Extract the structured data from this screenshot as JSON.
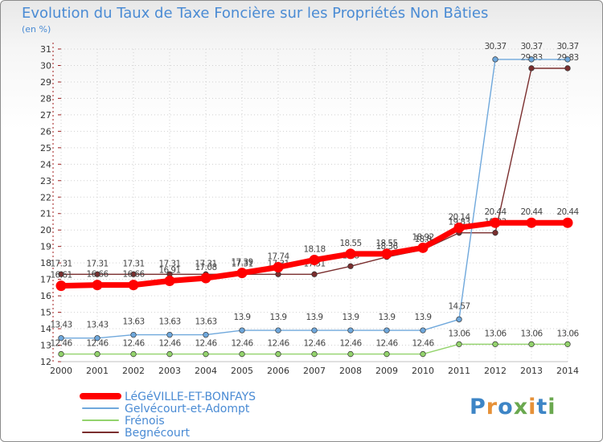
{
  "title": "Evolution du Taux de Taxe Foncière sur les Propriétés Non Bâties",
  "unit": "(en %)",
  "logo": "Proxiti",
  "chart_data": {
    "type": "line",
    "title": "Evolution du Taux de Taxe Foncière sur les Propriétés Non Bâties",
    "ylabel": "(en %)",
    "xlabel": "",
    "x": [
      2000,
      2001,
      2002,
      2003,
      2004,
      2005,
      2006,
      2007,
      2008,
      2009,
      2010,
      2011,
      2012,
      2013,
      2014
    ],
    "ylim": [
      12,
      31
    ],
    "legend_position": "bottom-left",
    "series": [
      {
        "name": "LéGéVILLE-ET-BONFAYS",
        "color": "#ff0000",
        "values": [
          16.61,
          16.66,
          16.66,
          16.91,
          17.08,
          17.39,
          17.74,
          18.18,
          18.55,
          18.55,
          18.92,
          20.14,
          20.44,
          20.44,
          20.44
        ]
      },
      {
        "name": "Gelvécourt-et-Adompt",
        "color": "#6fa8dc",
        "values": [
          13.43,
          13.43,
          13.63,
          13.63,
          13.63,
          13.9,
          13.9,
          13.9,
          13.9,
          13.9,
          13.9,
          14.57,
          30.37,
          30.37,
          30.37
        ]
      },
      {
        "name": "Frénois",
        "color": "#93d36c",
        "values": [
          12.46,
          12.46,
          12.46,
          12.46,
          12.46,
          12.46,
          12.46,
          12.46,
          12.46,
          12.46,
          12.46,
          13.06,
          13.06,
          13.06,
          13.06
        ]
      },
      {
        "name": "Begnécourt",
        "color": "#7a2e2e",
        "values": [
          17.31,
          17.31,
          17.31,
          17.31,
          17.31,
          17.31,
          17.31,
          17.31,
          17.8,
          18.36,
          18.8,
          19.83,
          19.83,
          29.83,
          29.83
        ]
      }
    ]
  }
}
